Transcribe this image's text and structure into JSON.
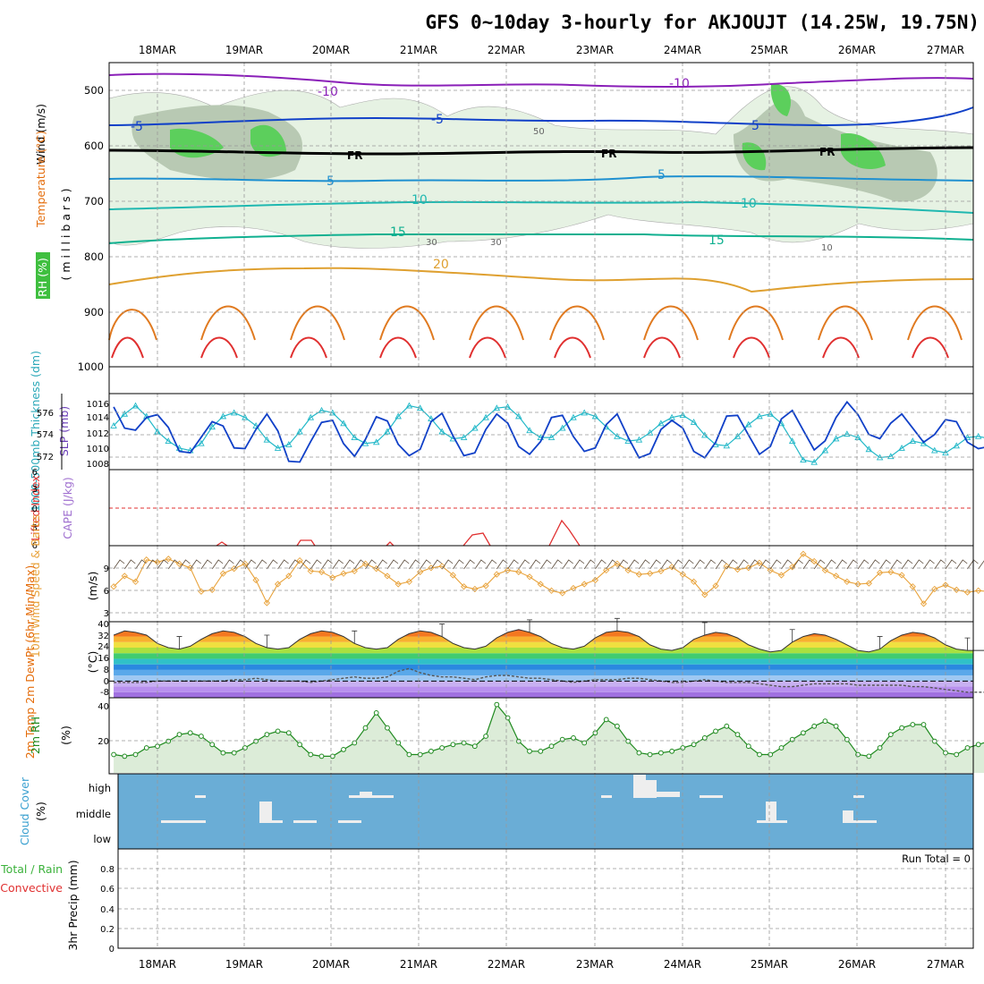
{
  "title": "GFS 0~10day 3-hourly for AKJOUJT (14.25W, 19.75N)",
  "dates": [
    "18MAR",
    "19MAR",
    "20MAR",
    "21MAR",
    "22MAR",
    "23MAR",
    "24MAR",
    "25MAR",
    "26MAR",
    "27MAR"
  ],
  "panels": {
    "upper": {
      "ylabels": [
        {
          "text": "Wind (m/s)",
          "color": "#000000"
        },
        {
          "text": "Temperature (°C)",
          "color": "#e46c0a"
        },
        {
          "text": "RH (%)",
          "color": "#2e8b2e"
        },
        {
          "text": "(millibars)",
          "color": "#000000"
        }
      ],
      "pressure_ticks": [
        "500",
        "600",
        "700",
        "800",
        "900",
        "1000"
      ],
      "contour_labels": [
        "-10",
        "-10",
        "-5",
        "-5",
        "5",
        "5",
        "5",
        "10",
        "10",
        "15",
        "15",
        "20",
        "FR",
        "FR",
        "FR",
        "50",
        "30",
        "30",
        "10"
      ]
    },
    "thickness": {
      "ylabel_left": "1000-500mb Thickness (dm)",
      "ylabel_right": "SLP (mb)",
      "left_ticks": [
        "576",
        "574",
        "572"
      ],
      "right_ticks": [
        "1016",
        "1014",
        "1012",
        "1010",
        "1008"
      ]
    },
    "cape": {
      "ylabel_left": "Lifted Index",
      "ylabel_right": "CAPE (J/kg)",
      "ticks": [
        "6",
        "3",
        "0",
        "3",
        "6"
      ]
    },
    "wind10m": {
      "ylabel": "10m Wind Speed & Barbs",
      "unit": "(m/s)",
      "ticks": [
        "9",
        "6",
        "3"
      ]
    },
    "temp2m": {
      "ylabel": "2m Temp 2m DewPt (6hr Min/Max)",
      "unit": "(°C)",
      "ticks": [
        "40",
        "32",
        "24",
        "16",
        "8",
        "0",
        "-8"
      ]
    },
    "rh2m": {
      "ylabel": "2m RH",
      "unit": "(%)",
      "ticks": [
        "40",
        "20"
      ]
    },
    "cloud": {
      "ylabel": "Cloud Cover",
      "unit": "(%)",
      "levels": [
        "high",
        "middle",
        "low"
      ],
      "bg": "#6aadd6"
    },
    "precip": {
      "ylabel_a": "Total / Rain",
      "ylabel_b": "Convective",
      "ylabel": "3hr Precip (mm)",
      "ticks": [
        "0.8",
        "0.6",
        "0.4",
        "0.2",
        "0"
      ],
      "run_total": "Run Total = 0"
    }
  },
  "chart_data": [
    {
      "type": "line",
      "title": "1000-500mb Thickness / SLP",
      "x_unit": "3-hourly steps from 17MAR 12Z",
      "series": [
        {
          "name": "1000-500mb Thickness (dm)",
          "color": "#22b8c8",
          "values": [
            574.5,
            575.5,
            576.2,
            575.3,
            574.0,
            573.2,
            572.6,
            572.4,
            573.0,
            574.4,
            575.3,
            575.6,
            575.2,
            574.5,
            573.3,
            572.6,
            572.9,
            574.0,
            575.2,
            575.8,
            575.6,
            574.7,
            573.5,
            573.0,
            573.1,
            574.0,
            575.3,
            576.2,
            576.0,
            575.1,
            574.0,
            573.4,
            573.5,
            574.3,
            575.2,
            576.0,
            576.1,
            575.3,
            574.1,
            573.5,
            573.5,
            574.3,
            575.2,
            575.6,
            575.3,
            574.4,
            573.6,
            573.2,
            573.3,
            573.9,
            574.7,
            575.2,
            575.4,
            574.8,
            573.7,
            572.9,
            572.8,
            573.6,
            574.6,
            575.3,
            575.5,
            574.7,
            573.2,
            571.6,
            571.4,
            572.4,
            573.4,
            573.8,
            573.5,
            572.5,
            571.8,
            571.9,
            572.6,
            573.2,
            573.0,
            572.4,
            572.2,
            572.8,
            573.5,
            573.6,
            573.4
          ]
        },
        {
          "name": "SLP (mb)",
          "color": "#1040c8",
          "values": [
            1015.5,
            1012.5,
            1012.2,
            1014.0,
            1014.4,
            1012.6,
            1009.2,
            1009.0,
            1011.2,
            1013.4,
            1012.8,
            1009.7,
            1009.6,
            1012.3,
            1014.5,
            1012.1,
            1007.8,
            1007.7,
            1010.6,
            1013.3,
            1013.6,
            1010.3,
            1008.5,
            1010.9,
            1014.1,
            1013.5,
            1010.2,
            1008.6,
            1009.5,
            1013.4,
            1014.6,
            1011.4,
            1008.6,
            1009.0,
            1012.3,
            1014.5,
            1013.2,
            1009.9,
            1008.8,
            1010.6,
            1014.0,
            1014.3,
            1011.3,
            1009.2,
            1009.7,
            1013.0,
            1014.5,
            1011.2,
            1008.3,
            1008.9,
            1012.3,
            1013.6,
            1012.5,
            1009.2,
            1008.3,
            1010.5,
            1014.2,
            1014.3,
            1011.5,
            1008.8,
            1009.9,
            1013.8,
            1015.0,
            1012.2,
            1009.4,
            1010.7,
            1014.0,
            1016.2,
            1014.4,
            1011.6,
            1011.0,
            1013.2,
            1014.5,
            1012.5,
            1010.5,
            1011.6,
            1013.7,
            1013.4,
            1010.5,
            1009.6,
            1009.9
          ]
        }
      ],
      "ylim_left": [
        571,
        577
      ],
      "ylim_right": [
        1007,
        1017
      ]
    },
    {
      "type": "line",
      "title": "10m Wind Speed",
      "series": [
        {
          "name": "10m Wind Speed (m/s)",
          "color": "#e8a23a",
          "values": [
            6.2,
            7.5,
            6.8,
            9.5,
            9.2,
            9.6,
            9.0,
            8.5,
            5.6,
            5.8,
            7.8,
            8.4,
            9.0,
            7.0,
            4.2,
            6.5,
            7.5,
            9.4,
            8.1,
            8.0,
            7.3,
            7.8,
            8.1,
            9.0,
            8.4,
            7.5,
            6.5,
            6.8,
            8.0,
            8.5,
            8.7,
            7.6,
            6.2,
            5.9,
            6.3,
            7.7,
            8.2,
            8.0,
            7.4,
            6.5,
            5.7,
            5.4,
            6.0,
            6.5,
            7.0,
            8.2,
            9.0,
            8.2,
            7.7,
            7.8,
            8.1,
            8.6,
            7.7,
            6.8,
            5.2,
            6.3,
            8.7,
            8.3,
            8.5,
            9.1,
            8.2,
            7.6,
            8.6,
            10.2,
            9.3,
            8.2,
            7.5,
            6.8,
            6.5,
            6.6,
            7.9,
            8.0,
            7.6,
            6.2,
            4.1,
            5.9,
            6.4,
            5.8,
            5.5,
            5.7,
            5.6
          ]
        }
      ],
      "ylim": [
        2,
        11
      ]
    },
    {
      "type": "area",
      "title": "2m Temp / 2m DewPt",
      "series": [
        {
          "name": "2m Temp (°C)",
          "color": "#222222",
          "values": [
            33,
            36,
            35,
            33,
            27,
            24,
            23,
            25,
            30,
            34,
            36,
            35,
            32,
            27,
            24,
            23,
            24,
            30,
            34,
            36,
            35,
            32,
            27,
            24,
            23,
            24,
            30,
            34,
            36,
            35,
            32,
            27,
            24,
            23,
            25,
            31,
            35,
            37,
            35,
            32,
            27,
            24,
            23,
            25,
            31,
            35,
            36,
            35,
            32,
            26,
            23,
            22,
            24,
            30,
            33,
            35,
            34,
            31,
            26,
            23,
            21,
            22,
            28,
            32,
            34,
            33,
            30,
            26,
            22,
            21,
            23,
            29,
            33,
            35,
            34,
            31,
            26,
            23,
            22,
            22,
            22
          ]
        },
        {
          "name": "2m DewPt (°C)",
          "color": "#555555",
          "values": [
            -1,
            -1,
            -1,
            -1,
            0,
            0,
            0,
            0,
            0,
            0,
            0,
            1,
            1,
            2,
            1,
            0,
            0,
            0,
            -1,
            0,
            1,
            2,
            3,
            2,
            2,
            3,
            7,
            9,
            6,
            4,
            3,
            3,
            2,
            1,
            3,
            4,
            4,
            3,
            2,
            2,
            1,
            0,
            -1,
            0,
            1,
            1,
            1,
            2,
            2,
            1,
            0,
            -1,
            -1,
            0,
            1,
            0,
            -1,
            -1,
            -1,
            -2,
            -3,
            -4,
            -4,
            -3,
            -2,
            -2,
            -2,
            -2,
            -3,
            -3,
            -3,
            -3,
            -3,
            -4,
            -4,
            -5,
            -6,
            -7,
            -8,
            -8,
            -8
          ]
        }
      ],
      "ylim": [
        -12,
        42
      ]
    },
    {
      "type": "area",
      "title": "2m RH",
      "series": [
        {
          "name": "2m RH (%)",
          "color": "#1f8a1f",
          "values": [
            11,
            10,
            11,
            15,
            16,
            19,
            23,
            24,
            22,
            17,
            12,
            12,
            15,
            19,
            23,
            25,
            24,
            17,
            11,
            10,
            10,
            14,
            18,
            27,
            36,
            27,
            18,
            11,
            11,
            13,
            15,
            17,
            18,
            16,
            22,
            41,
            33,
            19,
            13,
            13,
            16,
            20,
            21,
            18,
            24,
            32,
            28,
            19,
            12,
            11,
            12,
            13,
            15,
            17,
            21,
            25,
            28,
            23,
            16,
            11,
            11,
            15,
            20,
            24,
            28,
            31,
            28,
            20,
            11,
            10,
            15,
            23,
            27,
            29,
            29,
            19,
            12,
            11,
            15,
            17,
            19
          ]
        }
      ],
      "ylim": [
        0,
        44
      ]
    },
    {
      "type": "bar",
      "title": "Cloud Cover",
      "levels": [
        "low",
        "middle",
        "high"
      ],
      "note": "small scattered values, mostly zero"
    },
    {
      "type": "bar",
      "title": "3hr Precip (mm)",
      "ylim": [
        0,
        0.9
      ],
      "values": []
    }
  ]
}
